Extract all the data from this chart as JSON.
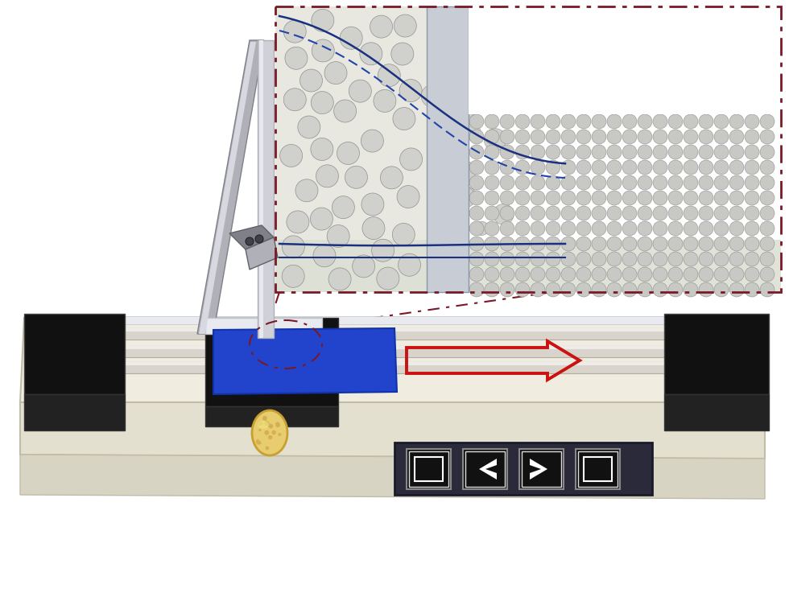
{
  "bg_color": "#ffffff",
  "machine_body_color": "#f0ede0",
  "machine_body_edge": "#c8c0a0",
  "rail_color_light": "#d8d4cc",
  "rail_color_dark": "#b0aca0",
  "black_color": "#111111",
  "dark_gray": "#222222",
  "blade_silver_light": "#d0d0d8",
  "blade_silver_mid": "#b0b0b8",
  "blade_silver_dark": "#808088",
  "blue_film_color": "#2244cc",
  "blue_film_edge": "#1133aa",
  "arrow_color": "#cc1111",
  "inset_bg_left": "#e8e8e0",
  "inset_bg_right": "#f0f0ec",
  "inset_border_color": "#7a1828",
  "sphere_fc": "#d0d0cc",
  "sphere_ec": "#909090",
  "sphere_fc_small": "#c8c8c4",
  "blade_region_fc": "#c8ccd4",
  "blade_region_ec": "#8898aa",
  "line_solid": "#1a3080",
  "line_dashed": "#2244aa",
  "gold_outer": "#c8a030",
  "gold_inner": "#e8cc70",
  "btn_panel_bg": "#2a2a3a",
  "btn_black": "#111111",
  "btn_white": "#ffffff",
  "cream_top": "#f0ece0",
  "cream_front": "#e4e0d0",
  "cream_bottom": "#d8d4c4",
  "platform_edge": "#c0bca8"
}
